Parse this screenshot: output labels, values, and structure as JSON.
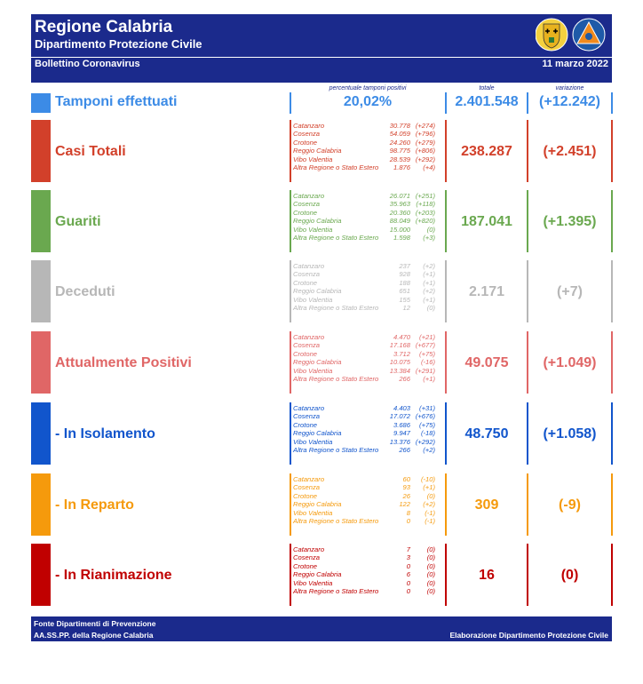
{
  "header": {
    "title": "Regione Calabria",
    "subtitle": "Dipartimento Protezione Civile",
    "bulletin": "Bollettino Coronavirus",
    "date": "11 marzo 2022"
  },
  "columns": {
    "perc_header": "percentuale tamponi positivi",
    "total_header": "totale",
    "variation_header": "variazione"
  },
  "tamponi": {
    "label": "Tamponi effettuati",
    "percent": "20,02%",
    "total": "2.401.548",
    "variation": "(+12.242)"
  },
  "sections": [
    {
      "label": "Casi Totali",
      "color": "#d2402a",
      "total": "238.287",
      "variation": "(+2.451)",
      "rows": [
        {
          "name": "Catanzaro",
          "value": "30.778",
          "change": "(+274)"
        },
        {
          "name": "Cosenza",
          "value": "54.059",
          "change": "(+796)"
        },
        {
          "name": "Crotone",
          "value": "24.260",
          "change": "(+279)"
        },
        {
          "name": "Reggio Calabria",
          "value": "98.775",
          "change": "(+806)"
        },
        {
          "name": "Vibo Valentia",
          "value": "28.539",
          "change": "(+292)"
        },
        {
          "name": "Altra Regione o Stato Estero",
          "value": "1.876",
          "change": "(+4)"
        }
      ]
    },
    {
      "label": "Guariti",
      "color": "#6aa84f",
      "total": "187.041",
      "variation": "(+1.395)",
      "rows": [
        {
          "name": "Catanzaro",
          "value": "26.071",
          "change": "(+251)"
        },
        {
          "name": "Cosenza",
          "value": "35.963",
          "change": "(+118)"
        },
        {
          "name": "Crotone",
          "value": "20.360",
          "change": "(+203)"
        },
        {
          "name": "Reggio Calabria",
          "value": "88.049",
          "change": "(+820)"
        },
        {
          "name": "Vibo Valentia",
          "value": "15.000",
          "change": "(0)"
        },
        {
          "name": "Altra Regione o Stato Estero",
          "value": "1.598",
          "change": "(+3)"
        }
      ]
    },
    {
      "label": "Deceduti",
      "color": "#b7b7b7",
      "total": "2.171",
      "variation": "(+7)",
      "rows": [
        {
          "name": "Catanzaro",
          "value": "237",
          "change": "(+2)"
        },
        {
          "name": "Cosenza",
          "value": "928",
          "change": "(+1)"
        },
        {
          "name": "Crotone",
          "value": "188",
          "change": "(+1)"
        },
        {
          "name": "Reggio Calabria",
          "value": "651",
          "change": "(+2)"
        },
        {
          "name": "Vibo Valentia",
          "value": "155",
          "change": "(+1)"
        },
        {
          "name": "Altra Regione o Stato Estero",
          "value": "12",
          "change": "(0)"
        }
      ]
    },
    {
      "label": "Attualmente Positivi",
      "color": "#e06666",
      "total": "49.075",
      "variation": "(+1.049)",
      "rows": [
        {
          "name": "Catanzaro",
          "value": "4.470",
          "change": "(+21)"
        },
        {
          "name": "Cosenza",
          "value": "17.168",
          "change": "(+677)"
        },
        {
          "name": "Crotone",
          "value": "3.712",
          "change": "(+75)"
        },
        {
          "name": "Reggio Calabria",
          "value": "10.075",
          "change": "(-16)"
        },
        {
          "name": "Vibo Valentia",
          "value": "13.384",
          "change": "(+291)"
        },
        {
          "name": "Altra Regione o Stato Estero",
          "value": "266",
          "change": "(+1)"
        }
      ]
    },
    {
      "label": " - In Isolamento",
      "color": "#1155cc",
      "total": "48.750",
      "variation": "(+1.058)",
      "rows": [
        {
          "name": "Catanzaro",
          "value": "4.403",
          "change": "(+31)"
        },
        {
          "name": "Cosenza",
          "value": "17.072",
          "change": "(+676)"
        },
        {
          "name": "Crotone",
          "value": "3.686",
          "change": "(+75)"
        },
        {
          "name": "Reggio Calabria",
          "value": "9.947",
          "change": "(-18)"
        },
        {
          "name": "Vibo Valentia",
          "value": "13.376",
          "change": "(+292)"
        },
        {
          "name": "Altra Regione o Stato Estero",
          "value": "266",
          "change": "(+2)"
        }
      ]
    },
    {
      "label": " - In Reparto",
      "color": "#f59a0c",
      "total": "309",
      "variation": "(-9)",
      "rows": [
        {
          "name": "Catanzaro",
          "value": "60",
          "change": "(-10)"
        },
        {
          "name": "Cosenza",
          "value": "93",
          "change": "(+1)"
        },
        {
          "name": "Crotone",
          "value": "26",
          "change": "(0)"
        },
        {
          "name": "Reggio Calabria",
          "value": "122",
          "change": "(+2)"
        },
        {
          "name": "Vibo Valentia",
          "value": "8",
          "change": "(-1)"
        },
        {
          "name": "Altra Regione o Stato Estero",
          "value": "0",
          "change": "(-1)"
        }
      ]
    },
    {
      "label": " - In Rianimazione",
      "color": "#c00000",
      "total": "16",
      "variation": "(0)",
      "rows": [
        {
          "name": "Catanzaro",
          "value": "7",
          "change": "(0)"
        },
        {
          "name": "Cosenza",
          "value": "3",
          "change": "(0)"
        },
        {
          "name": "Crotone",
          "value": "0",
          "change": "(0)"
        },
        {
          "name": "Reggio Calabria",
          "value": "6",
          "change": "(0)"
        },
        {
          "name": "Vibo Valentia",
          "value": "0",
          "change": "(0)"
        },
        {
          "name": "Altra Regione o Stato Estero",
          "value": "0",
          "change": "(0)"
        }
      ]
    }
  ],
  "footer": {
    "source_line1": "Fonte Dipartimenti di Prevenzione",
    "source_line2": "AA.SS.PP.  della Regione Calabria",
    "credit": "Elaborazione Dipartimento Protezione Civile"
  },
  "logos": [
    "regione-calabria-crest-icon",
    "protezione-civile-icon"
  ]
}
